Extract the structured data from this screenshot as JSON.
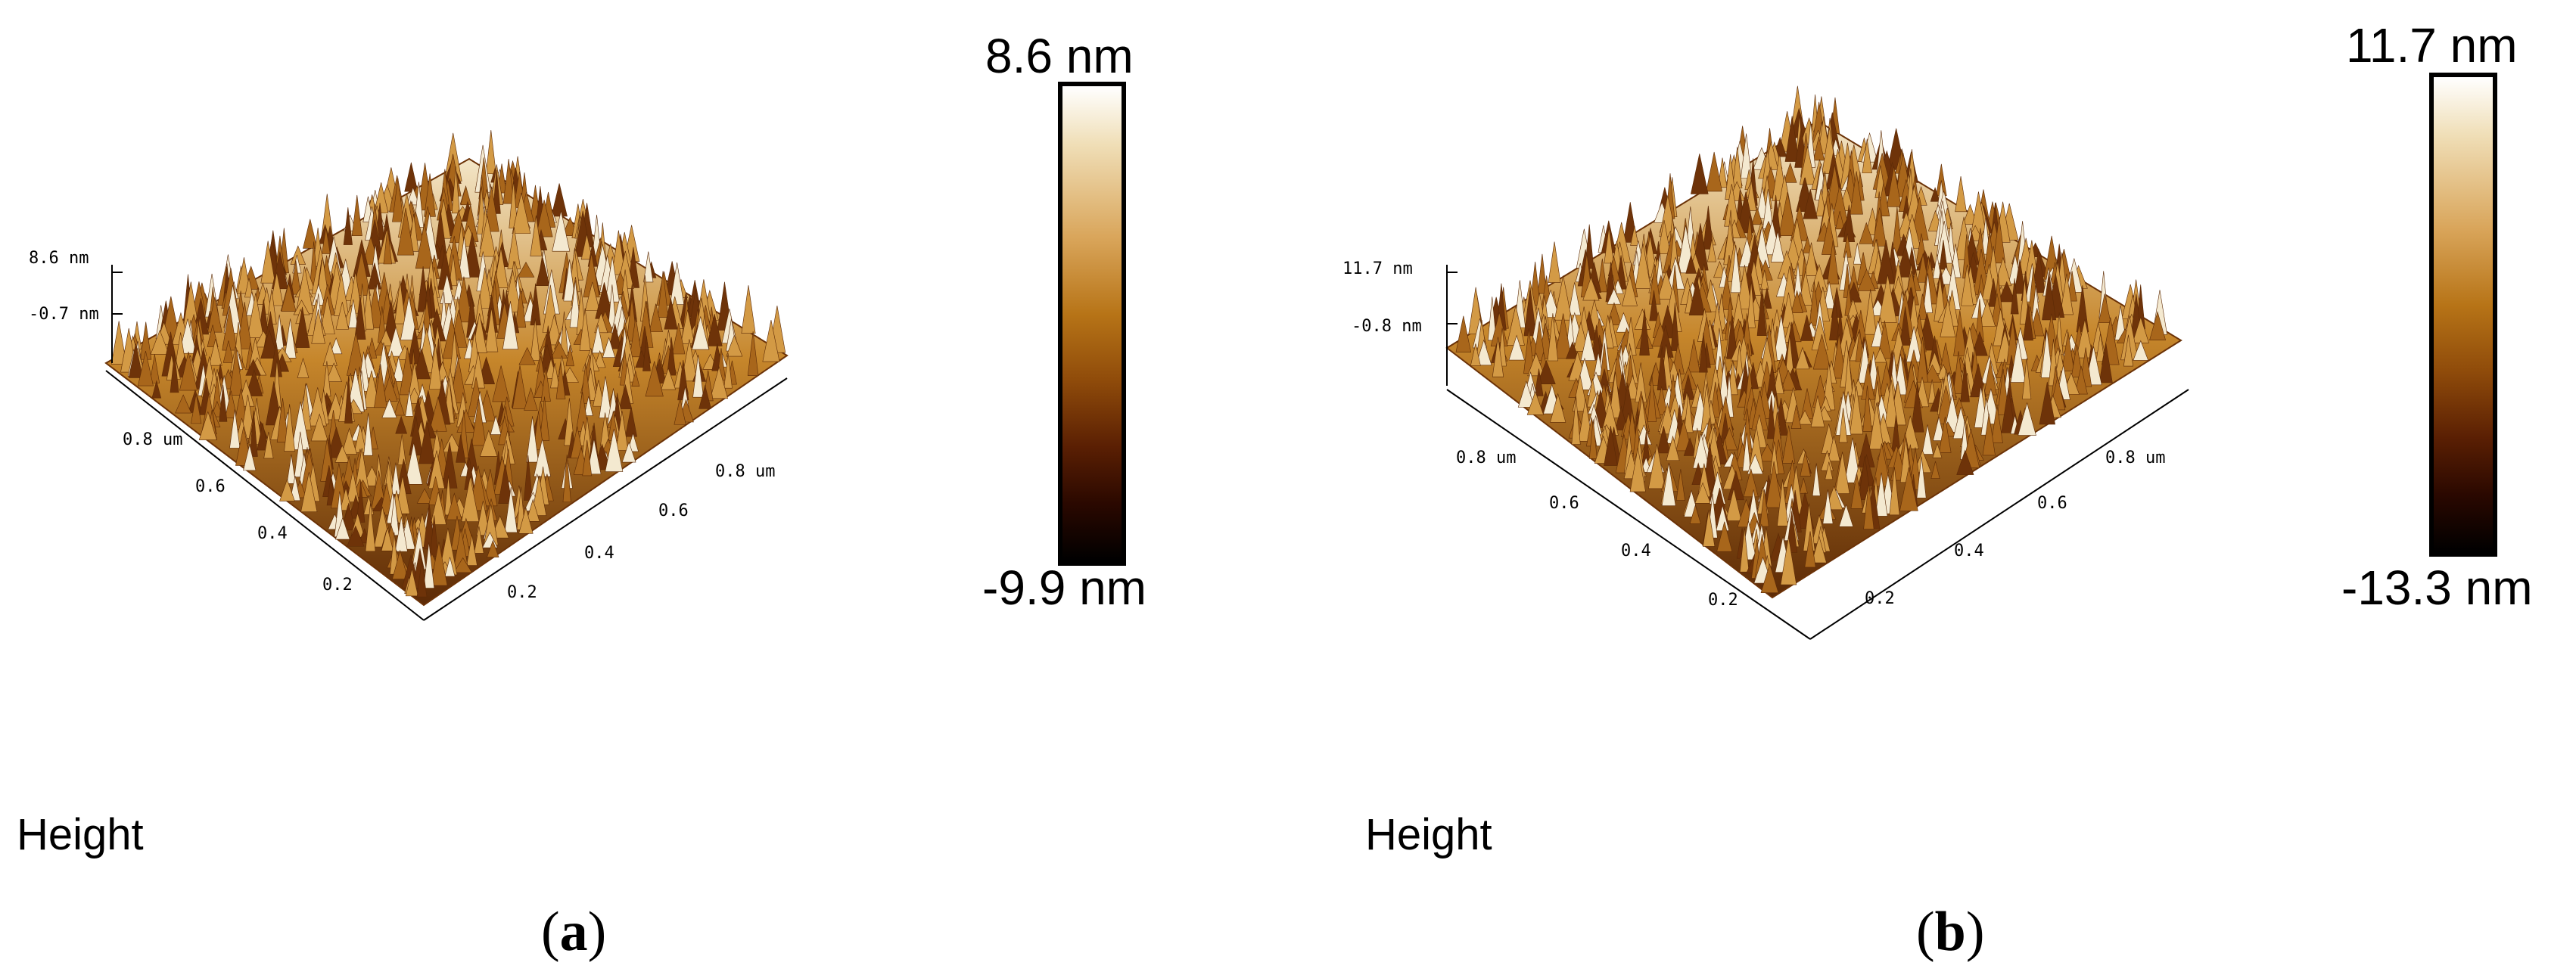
{
  "panels": [
    {
      "id": "a",
      "z_max_label": "8.6 nm",
      "z_mid_label": "-0.7 nm",
      "colorbar_max": "8.6 nm",
      "colorbar_min": "-9.9 nm",
      "channel_label": "Height",
      "caption_letter": "a",
      "left_axis_ticks": [
        "0.8 um",
        "0.6",
        "0.4",
        "0.2"
      ],
      "right_axis_ticks": [
        "0.8 um",
        "0.6",
        "0.4",
        "0.2"
      ]
    },
    {
      "id": "b",
      "z_max_label": "11.7 nm",
      "z_mid_label": "-0.8 nm",
      "colorbar_max": "11.7 nm",
      "colorbar_min": "-13.3 nm",
      "channel_label": "Height",
      "caption_letter": "b",
      "left_axis_ticks": [
        "0.8 um",
        "0.6",
        "0.4",
        "0.2"
      ],
      "right_axis_ticks": [
        "0.8 um",
        "0.6",
        "0.4",
        "0.2"
      ]
    }
  ],
  "colors": {
    "surface_light": "#f3e6c8",
    "surface_mid": "#c6862b",
    "surface_dark": "#5c2a06",
    "colorbar_top": "#ffffff",
    "colorbar_bottom": "#000000"
  },
  "caption_parens": [
    "(",
    ")"
  ]
}
